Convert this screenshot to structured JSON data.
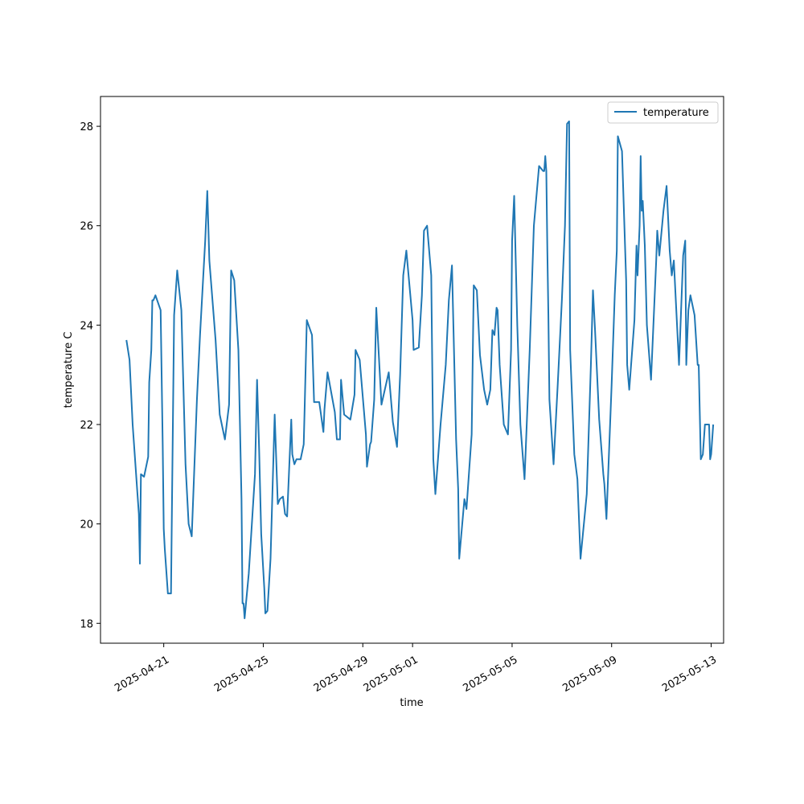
{
  "chart_data": {
    "type": "line",
    "title": "",
    "xlabel": "time",
    "ylabel": "temperature C",
    "xlim": [
      "2025-04-18 11:00",
      "2025-05-13 12:00"
    ],
    "ylim": [
      17.6,
      28.6
    ],
    "grid": false,
    "legend_position": "top-right",
    "x_ticks": [
      "2025-04-21",
      "2025-04-25",
      "2025-04-29",
      "2025-05-01",
      "2025-05-05",
      "2025-05-09",
      "2025-05-13"
    ],
    "y_ticks": [
      18,
      20,
      22,
      24,
      26,
      28
    ],
    "series": [
      {
        "name": "temperature",
        "color": "#1f77b4",
        "x": [
          "2025-04-19 12:00",
          "2025-04-19 15:00",
          "2025-04-19 18:00",
          "2025-04-20 00:00",
          "2025-04-20 01:00",
          "2025-04-20 02:00",
          "2025-04-20 05:00",
          "2025-04-20 09:00",
          "2025-04-20 10:00",
          "2025-04-20 12:00",
          "2025-04-20 13:00",
          "2025-04-20 14:00",
          "2025-04-20 16:00",
          "2025-04-20 21:00",
          "2025-04-20 23:00",
          "2025-04-21 00:00",
          "2025-04-21 01:00",
          "2025-04-21 04:00",
          "2025-04-21 07:00",
          "2025-04-21 08:00",
          "2025-04-21 10:00",
          "2025-04-21 13:00",
          "2025-04-21 17:00",
          "2025-04-21 18:00",
          "2025-04-21 21:00",
          "2025-04-22 00:00",
          "2025-04-22 03:00",
          "2025-04-22 08:00",
          "2025-04-22 11:00",
          "2025-04-22 16:00",
          "2025-04-22 18:00",
          "2025-04-22 20:00",
          "2025-04-23 02:00",
          "2025-04-23 06:00",
          "2025-04-23 11:00",
          "2025-04-23 15:00",
          "2025-04-23 17:00",
          "2025-04-23 20:00",
          "2025-04-24 00:00",
          "2025-04-24 03:00",
          "2025-04-24 04:00",
          "2025-04-24 05:00",
          "2025-04-24 06:00",
          "2025-04-24 10:00",
          "2025-04-24 16:00",
          "2025-04-24 18:00",
          "2025-04-24 20:00",
          "2025-04-24 22:00",
          "2025-04-25 01:00",
          "2025-04-25 02:00",
          "2025-04-25 04:00",
          "2025-04-25 07:00",
          "2025-04-25 11:00",
          "2025-04-25 14:00",
          "2025-04-25 16:00",
          "2025-04-25 19:00",
          "2025-04-25 21:00",
          "2025-04-25 23:00",
          "2025-04-26 03:00",
          "2025-04-26 04:00",
          "2025-04-26 06:00",
          "2025-04-26 08:00",
          "2025-04-26 12:00",
          "2025-04-26 15:00",
          "2025-04-26 16:00",
          "2025-04-26 18:00",
          "2025-04-26 23:00",
          "2025-04-27 01:00",
          "2025-04-27 06:00",
          "2025-04-27 10:00",
          "2025-04-27 11:00",
          "2025-04-27 14:00",
          "2025-04-27 21:00",
          "2025-04-27 23:00",
          "2025-04-28 02:00",
          "2025-04-28 03:00",
          "2025-04-28 06:00",
          "2025-04-28 12:00",
          "2025-04-28 16:00",
          "2025-04-28 17:00",
          "2025-04-28 21:00",
          "2025-04-29 03:00",
          "2025-04-29 04:00",
          "2025-04-29 07:00",
          "2025-04-29 08:00",
          "2025-04-29 11:00",
          "2025-04-29 13:00",
          "2025-04-29 18:00",
          "2025-04-30 01:00",
          "2025-04-30 05:00",
          "2025-04-30 07:00",
          "2025-04-30 09:00",
          "2025-04-30 12:00",
          "2025-04-30 15:00",
          "2025-04-30 18:00",
          "2025-05-01 00:00",
          "2025-05-01 01:00",
          "2025-05-01 06:00",
          "2025-05-01 09:00",
          "2025-05-01 11:00",
          "2025-05-01 14:00",
          "2025-05-01 18:00",
          "2025-05-01 20:00",
          "2025-05-01 22:00",
          "2025-05-02 03:00",
          "2025-05-02 08:00",
          "2025-05-02 11:00",
          "2025-05-02 14:00",
          "2025-05-02 18:00",
          "2025-05-02 20:00",
          "2025-05-02 21:00",
          "2025-05-03 02:00",
          "2025-05-03 04:00",
          "2025-05-03 09:00",
          "2025-05-03 11:00",
          "2025-05-03 14:00",
          "2025-05-03 17:00",
          "2025-05-03 21:00",
          "2025-05-04 00:00",
          "2025-05-04 03:00",
          "2025-05-04 05:00",
          "2025-05-04 07:00",
          "2025-05-04 09:00",
          "2025-05-04 10:00",
          "2025-05-04 12:00",
          "2025-05-04 16:00",
          "2025-05-04 20:00",
          "2025-05-04 23:00",
          "2025-05-05 00:00",
          "2025-05-05 02:00",
          "2025-05-05 05:00",
          "2025-05-05 08:00",
          "2025-05-05 12:00",
          "2025-05-05 17:00",
          "2025-05-05 21:00",
          "2025-05-06 02:00",
          "2025-05-06 06:00",
          "2025-05-06 07:00",
          "2025-05-06 08:00",
          "2025-05-06 09:00",
          "2025-05-06 10:00",
          "2025-05-06 11:00",
          "2025-05-06 12:00",
          "2025-05-06 16:00",
          "2025-05-06 20:00",
          "2025-05-07 00:00",
          "2025-05-07 03:00",
          "2025-05-07 05:00",
          "2025-05-07 07:00",
          "2025-05-07 08:00",
          "2025-05-07 12:00",
          "2025-05-07 15:00",
          "2025-05-07 18:00",
          "2025-05-08 00:00",
          "2025-05-08 04:00",
          "2025-05-08 06:00",
          "2025-05-08 08:00",
          "2025-05-08 12:00",
          "2025-05-08 16:00",
          "2025-05-08 17:00",
          "2025-05-08 19:00",
          "2025-05-09 00:00",
          "2025-05-09 03:00",
          "2025-05-09 05:00",
          "2025-05-09 06:00",
          "2025-05-09 10:00",
          "2025-05-09 14:00",
          "2025-05-09 15:00",
          "2025-05-09 17:00",
          "2025-05-09 22:00",
          "2025-05-10 00:00",
          "2025-05-10 01:00",
          "2025-05-10 03:00",
          "2025-05-10 04:00",
          "2025-05-10 05:00",
          "2025-05-10 06:00",
          "2025-05-10 08:00",
          "2025-05-10 10:00",
          "2025-05-10 14:00",
          "2025-05-10 19:00",
          "2025-05-10 20:00",
          "2025-05-10 22:00",
          "2025-05-11 02:00",
          "2025-05-11 05:00",
          "2025-05-11 08:00",
          "2025-05-11 10:00",
          "2025-05-11 12:00",
          "2025-05-11 17:00",
          "2025-05-11 21:00",
          "2025-05-11 23:00",
          "2025-05-12 00:00",
          "2025-05-12 02:00",
          "2025-05-12 04:00",
          "2025-05-12 08:00",
          "2025-05-12 11:00",
          "2025-05-12 12:00",
          "2025-05-12 14:00",
          "2025-05-12 16:00",
          "2025-05-12 18:00",
          "2025-05-12 19:00",
          "2025-05-12 22:00",
          "2025-05-12 23:00",
          "2025-05-13 00:00",
          "2025-05-13 02:00"
        ],
        "values": [
          23.7,
          23.3,
          22.0,
          20.2,
          19.2,
          21.0,
          20.95,
          21.35,
          22.85,
          23.5,
          24.5,
          24.5,
          24.6,
          24.3,
          21.6,
          19.9,
          19.5,
          18.6,
          18.6,
          20.5,
          24.2,
          25.1,
          24.3,
          23.5,
          21.2,
          20.0,
          19.75,
          22.5,
          23.8,
          25.7,
          26.7,
          25.3,
          23.7,
          22.2,
          21.7,
          22.4,
          25.1,
          24.9,
          23.5,
          20.5,
          18.4,
          18.4,
          18.1,
          19.0,
          21.0,
          22.9,
          21.5,
          19.8,
          18.7,
          18.2,
          18.25,
          19.3,
          22.2,
          20.4,
          20.5,
          20.55,
          20.2,
          20.15,
          22.1,
          21.4,
          21.2,
          21.3,
          21.3,
          21.6,
          22.4,
          24.1,
          23.8,
          22.45,
          22.45,
          21.85,
          22.3,
          23.05,
          22.25,
          21.7,
          21.7,
          22.9,
          22.2,
          22.1,
          22.6,
          23.5,
          23.3,
          21.8,
          21.15,
          21.6,
          21.65,
          22.5,
          24.35,
          22.4,
          23.05,
          22.05,
          21.8,
          21.55,
          23.0,
          25.0,
          25.5,
          24.1,
          23.5,
          23.55,
          24.6,
          25.9,
          26.0,
          25.0,
          21.3,
          20.6,
          22.0,
          23.2,
          24.5,
          25.2,
          21.7,
          20.7,
          19.3,
          20.5,
          20.3,
          21.8,
          24.8,
          24.7,
          23.4,
          22.7,
          22.4,
          22.7,
          23.9,
          23.8,
          24.35,
          24.3,
          23.2,
          22.0,
          21.8,
          23.5,
          25.7,
          26.6,
          24.0,
          22.0,
          20.9,
          23.5,
          26.0,
          27.2,
          27.1,
          27.1,
          27.4,
          27.1,
          25.5,
          24.2,
          22.5,
          21.2,
          22.8,
          24.5,
          26.0,
          28.05,
          28.1,
          23.5,
          21.4,
          20.9,
          19.3,
          20.6,
          23.2,
          24.7,
          23.9,
          22.1,
          21.0,
          20.8,
          20.1,
          22.8,
          24.6,
          25.5,
          27.8,
          27.5,
          24.9,
          23.2,
          22.7,
          24.1,
          25.6,
          25.0,
          26.0,
          27.4,
          26.3,
          26.5,
          25.6,
          24.0,
          22.9,
          25.3,
          25.9,
          25.4,
          26.3,
          26.8,
          25.5,
          25.0,
          25.3,
          23.2,
          25.4,
          25.7,
          23.2,
          24.3,
          24.6,
          24.2,
          23.2,
          23.2,
          21.3,
          21.4,
          22.0,
          22.0,
          22.0,
          21.3,
          21.4,
          22.0
        ]
      }
    ]
  }
}
